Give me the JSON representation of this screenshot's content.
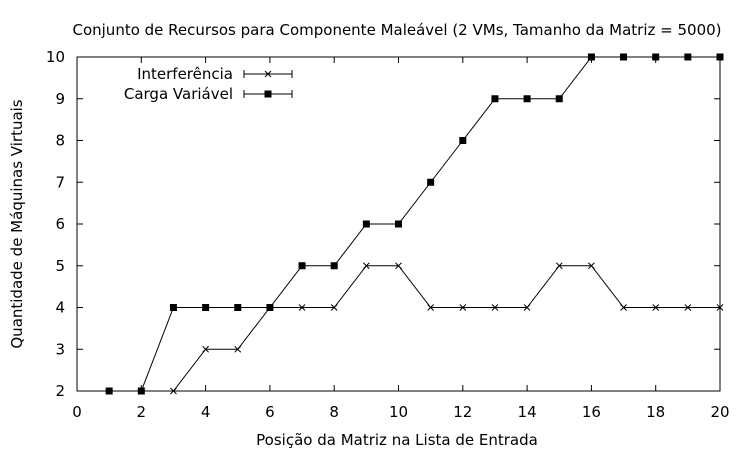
{
  "chart_data": {
    "type": "line",
    "title": "Conjunto de Recursos para Componente Maleável (2 VMs, Tamanho da Matriz = 5000)",
    "xlabel": "Posição da Matriz na Lista de Entrada",
    "ylabel": "Quantidade de Máquinas Virtuais",
    "xlim": [
      0,
      20
    ],
    "ylim": [
      2,
      10
    ],
    "xticks": [
      0,
      2,
      4,
      6,
      8,
      10,
      12,
      14,
      16,
      18,
      20
    ],
    "yticks": [
      2,
      3,
      4,
      5,
      6,
      7,
      8,
      9,
      10
    ],
    "grid": false,
    "legend_position": "top-left",
    "series": [
      {
        "name": "Interferência",
        "marker": "x",
        "x": [
          1,
          2,
          3,
          4,
          5,
          6,
          7,
          8,
          9,
          10,
          11,
          12,
          13,
          14,
          15,
          16,
          17,
          18,
          19,
          20
        ],
        "values": [
          2,
          2,
          2,
          3,
          3,
          4,
          4,
          4,
          5,
          5,
          4,
          4,
          4,
          4,
          5,
          5,
          4,
          4,
          4,
          4
        ]
      },
      {
        "name": "Carga Variável",
        "marker": "square",
        "x": [
          1,
          2,
          3,
          4,
          5,
          6,
          7,
          8,
          9,
          10,
          11,
          12,
          13,
          14,
          15,
          16,
          17,
          18,
          19,
          20
        ],
        "values": [
          2,
          2,
          4,
          4,
          4,
          4,
          5,
          5,
          6,
          6,
          7,
          8,
          9,
          9,
          9,
          10,
          10,
          10,
          10,
          10
        ]
      }
    ]
  }
}
